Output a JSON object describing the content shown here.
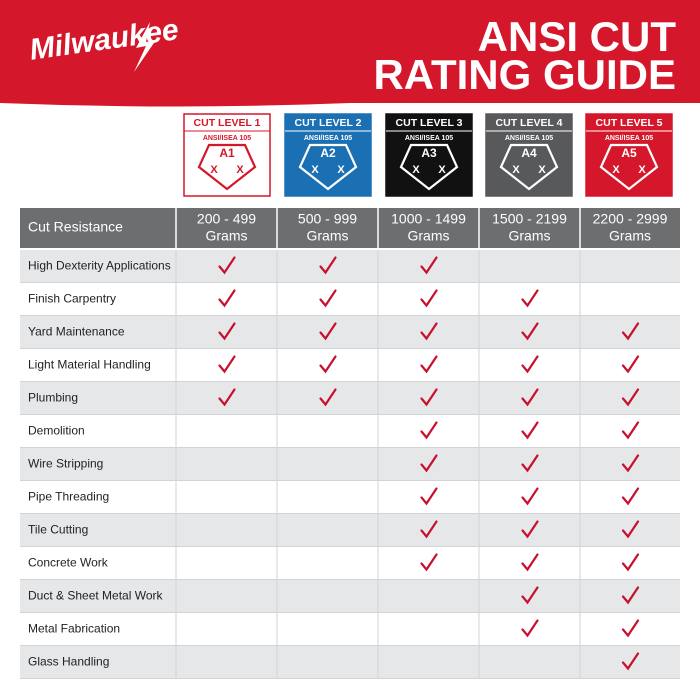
{
  "header": {
    "logo": "Milwaukee",
    "title_lines": [
      "ANSI CUT",
      "RATING GUIDE"
    ]
  },
  "badges": [
    {
      "label": "CUT LEVEL 1",
      "standard": "ANSI/ISEA 105",
      "code": "A1",
      "marks": [
        "X",
        "X"
      ]
    },
    {
      "label": "CUT LEVEL 2",
      "standard": "ANSI/ISEA 105",
      "code": "A2",
      "marks": [
        "X",
        "X"
      ]
    },
    {
      "label": "CUT LEVEL 3",
      "standard": "ANSI/ISEA 105",
      "code": "A3",
      "marks": [
        "X",
        "X"
      ]
    },
    {
      "label": "CUT LEVEL 4",
      "standard": "ANSI/ISEA 105",
      "code": "A4",
      "marks": [
        "X",
        "X"
      ]
    },
    {
      "label": "CUT LEVEL 5",
      "standard": "ANSI/ISEA 105",
      "code": "A5",
      "marks": [
        "X",
        "X"
      ]
    }
  ],
  "table": {
    "header": "Cut Resistance",
    "columns": [
      {
        "range": "200 - 499",
        "unit": "Grams"
      },
      {
        "range": "500 - 999",
        "unit": "Grams"
      },
      {
        "range": "1000 - 1499",
        "unit": "Grams"
      },
      {
        "range": "1500 - 2199",
        "unit": "Grams"
      },
      {
        "range": "2200 - 2999",
        "unit": "Grams"
      }
    ],
    "rows": [
      {
        "label": "High Dexterity Applications",
        "checks": [
          true,
          true,
          true,
          false,
          false
        ]
      },
      {
        "label": "Finish Carpentry",
        "checks": [
          true,
          true,
          true,
          true,
          false
        ]
      },
      {
        "label": "Yard Maintenance",
        "checks": [
          true,
          true,
          true,
          true,
          true
        ]
      },
      {
        "label": "Light Material Handling",
        "checks": [
          true,
          true,
          true,
          true,
          true
        ]
      },
      {
        "label": "Plumbing",
        "checks": [
          true,
          true,
          true,
          true,
          true
        ]
      },
      {
        "label": "Demolition",
        "checks": [
          false,
          false,
          true,
          true,
          true
        ]
      },
      {
        "label": "Wire Stripping",
        "checks": [
          false,
          false,
          true,
          true,
          true
        ]
      },
      {
        "label": "Pipe Threading",
        "checks": [
          false,
          false,
          true,
          true,
          true
        ]
      },
      {
        "label": "Tile Cutting",
        "checks": [
          false,
          false,
          true,
          true,
          true
        ]
      },
      {
        "label": "Concrete Work",
        "checks": [
          false,
          false,
          true,
          true,
          true
        ]
      },
      {
        "label": "Duct & Sheet Metal Work",
        "checks": [
          false,
          false,
          false,
          true,
          true
        ]
      },
      {
        "label": "Metal Fabrication",
        "checks": [
          false,
          false,
          false,
          true,
          true
        ]
      },
      {
        "label": "Glass Handling",
        "checks": [
          false,
          false,
          false,
          false,
          true
        ]
      }
    ]
  }
}
